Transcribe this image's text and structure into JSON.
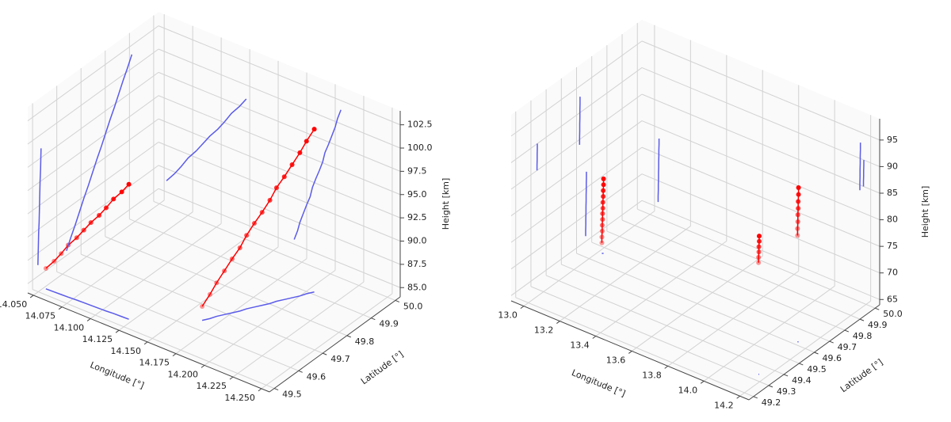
{
  "chart_data": [
    {
      "type": "trajectory3d",
      "xlabel": "Longitude [°]",
      "ylabel": "Latitude [°]",
      "zlabel": "Height [km]",
      "xlim": [
        14.045,
        14.257
      ],
      "ylim": [
        49.48,
        50.02
      ],
      "zlim": [
        84,
        104
      ],
      "xticks": [
        {
          "value": 14.05,
          "label": "14.050"
        },
        14.075,
        {
          "value": 14.1,
          "label": "14.100"
        },
        14.125,
        {
          "value": 14.15,
          "label": "14.150"
        },
        14.175,
        {
          "value": 14.2,
          "label": "14.200"
        },
        14.225,
        {
          "value": 14.25,
          "label": "14.250"
        }
      ],
      "yticks": [
        49.5,
        49.6,
        49.7,
        49.8,
        49.9,
        {
          "value": 50,
          "label": "50.0"
        }
      ],
      "zticks": [
        {
          "value": 85,
          "label": "85.0"
        },
        87.5,
        {
          "value": 90,
          "label": "90.0"
        },
        92.5,
        {
          "value": 95,
          "label": "95.0"
        },
        97.5,
        {
          "value": 100,
          "label": "100.0"
        },
        102.5
      ],
      "grid": true,
      "projections": true,
      "projection_color": "#5b5bea",
      "series": [
        {
          "color": "#ff0000",
          "x": [
            14.122,
            14.116,
            14.109,
            14.103,
            14.097,
            14.09,
            14.084,
            14.078,
            14.071,
            14.065,
            14.059,
            14.052
          ],
          "y": [
            49.535,
            49.534,
            49.533,
            49.531,
            49.53,
            49.529,
            49.528,
            49.527,
            49.525,
            49.524,
            49.523,
            49.522
          ],
          "z": [
            98.5,
            97.4,
            96.3,
            95.1,
            94.0,
            92.9,
            91.8,
            90.7,
            89.6,
            88.4,
            87.3,
            86.2
          ]
        },
        {
          "color": "#ff0000",
          "x": [
            14.205,
            14.202,
            14.2,
            14.197,
            14.194,
            14.191,
            14.189,
            14.186,
            14.183,
            14.18,
            14.178,
            14.175,
            14.172,
            14.169,
            14.167,
            14.164
          ],
          "y": [
            49.91,
            49.892,
            49.874,
            49.856,
            49.838,
            49.82,
            49.802,
            49.784,
            49.766,
            49.748,
            49.73,
            49.712,
            49.694,
            49.676,
            49.658,
            49.64
          ],
          "z": [
            101.5,
            100.4,
            99.4,
            98.3,
            97.2,
            96.2,
            95.1,
            94.0,
            93.0,
            91.9,
            90.8,
            89.8,
            88.7,
            87.6,
            86.6,
            85.5
          ]
        }
      ]
    },
    {
      "type": "trajectory3d",
      "xlabel": "Longitude [°]",
      "ylabel": "Latitude [°]",
      "zlabel": "Height [km]",
      "xlim": [
        12.93,
        14.25
      ],
      "ylim": [
        49.17,
        50.03
      ],
      "zlim": [
        64,
        99
      ],
      "xticks": [
        {
          "value": 13,
          "label": "13.0"
        },
        13.2,
        13.4,
        13.6,
        13.8,
        {
          "value": 14,
          "label": "14.0"
        },
        14.2
      ],
      "yticks": [
        49.2,
        49.3,
        49.4,
        49.5,
        49.6,
        49.7,
        49.8,
        49.9,
        {
          "value": 50,
          "label": "50.0"
        }
      ],
      "zticks": [
        65,
        70,
        75,
        80,
        85,
        90,
        95
      ],
      "grid": true,
      "projections": true,
      "projection_color": "#5b5bea",
      "series": [
        {
          "color": "#ff0000",
          "x": [
            13.025,
            13.025,
            13.024,
            13.024,
            13.023,
            13.023,
            13.022,
            13.022,
            13.021,
            13.021,
            13.02,
            13.02
          ],
          "y": [
            49.665,
            49.665,
            49.664,
            49.664,
            49.663,
            49.663,
            49.662,
            49.662,
            49.661,
            49.661,
            49.66,
            49.66
          ],
          "z": [
            78,
            76.9,
            75.8,
            74.7,
            73.6,
            72.5,
            71.5,
            70.4,
            69.3,
            68.2,
            67.1,
            66
          ]
        },
        {
          "color": "#ff0000",
          "x": [
            14.162,
            14.162,
            14.161,
            14.161,
            14.16,
            14.16
          ],
          "y": [
            49.342,
            49.342,
            49.341,
            49.341,
            49.34,
            49.34
          ],
          "z": [
            90,
            89,
            88,
            87,
            86,
            85
          ]
        },
        {
          "color": "#ff0000",
          "x": [
            14.143,
            14.143,
            14.142,
            14.142,
            14.141,
            14.141,
            14.14,
            14.14
          ],
          "y": [
            49.623,
            49.623,
            49.622,
            49.622,
            49.621,
            49.621,
            49.62,
            49.62
          ],
          "z": [
            93,
            91.7,
            90.4,
            89.1,
            87.9,
            86.6,
            85.3,
            84
          ]
        }
      ]
    }
  ]
}
